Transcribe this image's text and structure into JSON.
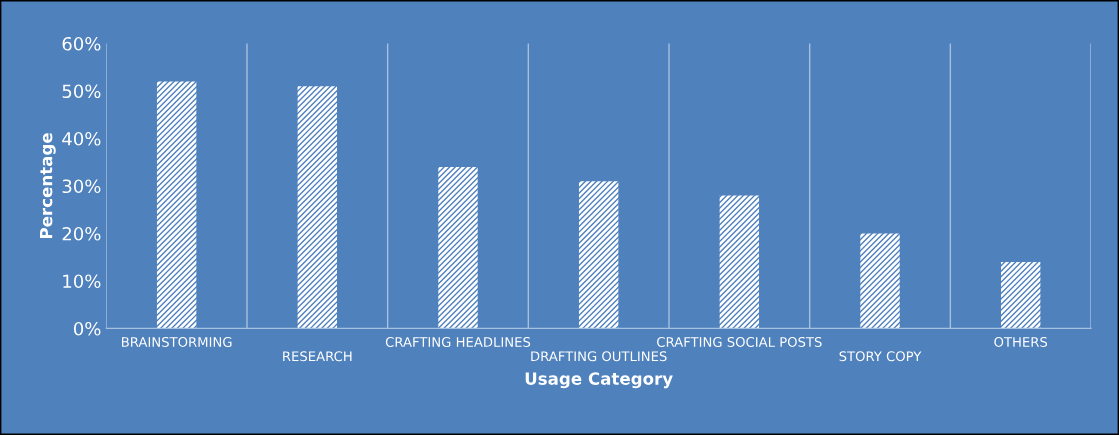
{
  "chart_data": {
    "type": "bar",
    "xlabel": "Usage Category",
    "ylabel": "Percentage",
    "categories": [
      "BRAINSTORMING",
      "RESEARCH",
      "CRAFTING HEADLINES",
      "DRAFTING OUTLINES",
      "CRAFTING SOCIAL POSTS",
      "STORY COPY",
      "OTHERS"
    ],
    "values": [
      52,
      51,
      34,
      31,
      28,
      20,
      14
    ],
    "color": "#ffffff",
    "ylim": [
      0,
      60
    ],
    "yticks": [
      {
        "value": 0,
        "label": "0%"
      },
      {
        "value": 10,
        "label": "10%"
      },
      {
        "value": 20,
        "label": "20%"
      },
      {
        "value": 30,
        "label": "30%"
      },
      {
        "value": 40,
        "label": "40%"
      },
      {
        "value": 50,
        "label": "50%"
      },
      {
        "value": 60,
        "label": "60%"
      }
    ],
    "grid": "x"
  }
}
